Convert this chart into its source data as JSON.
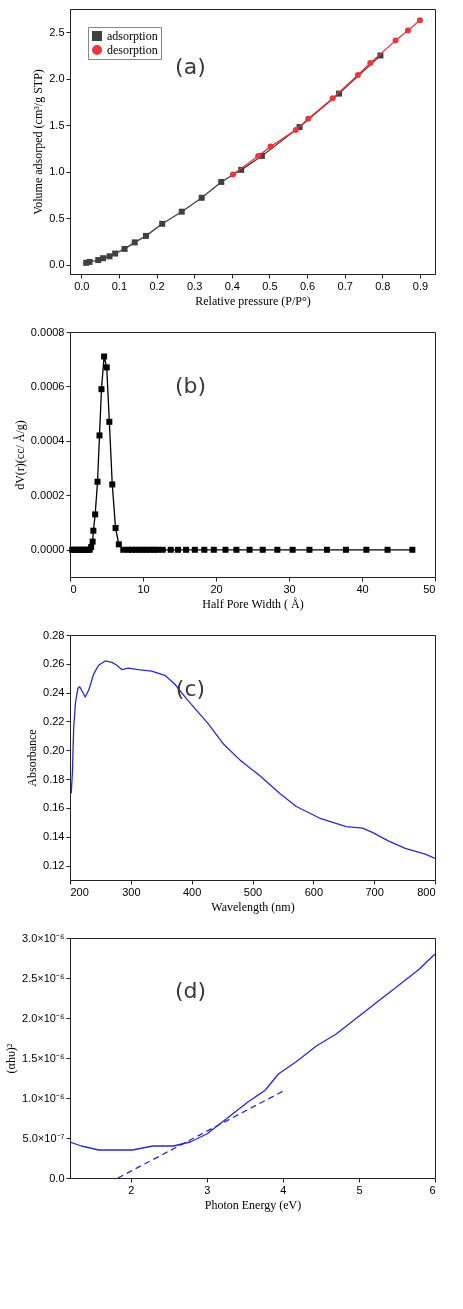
{
  "chart_data": [
    {
      "type": "line",
      "xlabel": "Relative pressure (P/P°)",
      "ylabel": "Volume adsorped (cm³/g STP)",
      "annotations": [
        "(a)"
      ],
      "xlim": [
        -0.03,
        0.94
      ],
      "ylim": [
        -0.1,
        2.75
      ],
      "xticks": [
        {
          "value": 0,
          "label": "0.0"
        },
        0.1,
        0.2,
        0.3,
        0.4,
        0.5,
        0.6,
        0.7,
        0.8,
        0.9
      ],
      "yticks": [
        {
          "value": 0,
          "label": "0.0"
        },
        0.5,
        {
          "value": 1,
          "label": "1.0"
        },
        1.5,
        {
          "value": 2,
          "label": "2.0"
        },
        2.5
      ],
      "grid": false,
      "legend": "top left",
      "series": [
        {
          "name": "adsorption",
          "color": "#404040",
          "marker": "square",
          "x": [
            0.013,
            0.022,
            0.045,
            0.058,
            0.075,
            0.09,
            0.115,
            0.142,
            0.172,
            0.215,
            0.267,
            0.32,
            0.372,
            0.425,
            0.48,
            0.58,
            0.685,
            0.795
          ],
          "values": [
            0.02,
            0.03,
            0.05,
            0.07,
            0.09,
            0.12,
            0.17,
            0.24,
            0.31,
            0.44,
            0.57,
            0.72,
            0.89,
            1.02,
            1.17,
            1.48,
            1.84,
            2.25
          ]
        },
        {
          "name": "desorption",
          "color": "#e8383d",
          "marker": "circle",
          "x": [
            0.403,
            0.47,
            0.503,
            0.57,
            0.603,
            0.668,
            0.735,
            0.768,
            0.835,
            0.868,
            0.9
          ],
          "values": [
            0.97,
            1.17,
            1.27,
            1.45,
            1.57,
            1.79,
            2.04,
            2.17,
            2.41,
            2.52,
            2.63
          ]
        }
      ]
    },
    {
      "type": "line",
      "xlabel": "Half Pore Width ( Å)",
      "ylabel": "dV(r)(cc/ Å/g)",
      "annotations": [
        "(b)"
      ],
      "xlim": [
        0,
        50
      ],
      "ylim": [
        -0.0001,
        0.0008
      ],
      "xticks": [
        0,
        10,
        20,
        30,
        40,
        50
      ],
      "yticks": [
        {
          "value": 0,
          "label": "0.0000"
        },
        0.0002,
        0.0004,
        0.0006,
        0.0008
      ],
      "grid": false,
      "marker": "square",
      "series": [
        {
          "color": "#000000",
          "x": [
            0.3,
            0.6,
            0.9,
            1.2,
            1.5,
            1.8,
            2.1,
            2.4,
            2.7,
            2.9,
            3.1,
            3.2,
            3.45,
            3.77,
            4.04,
            4.31,
            4.67,
            5.03,
            5.39,
            5.79,
            6.24,
            6.69,
            7.3,
            8,
            8.5,
            9,
            9.5,
            10,
            10.5,
            11,
            11.5,
            12,
            12.7,
            13.8,
            14.8,
            15.9,
            17.1,
            18.4,
            19.7,
            21.3,
            22.8,
            24.6,
            26.4,
            28.4,
            30.5,
            32.8,
            35.2,
            37.8,
            40.6,
            43.5,
            46.9
          ],
          "values": [
            0,
            0,
            0,
            0,
            0,
            0,
            0,
            0,
            0,
            1e-05,
            3e-05,
            7e-05,
            0.00013,
            0.00025,
            0.00042,
            0.00059,
            0.00071,
            0.00067,
            0.00047,
            0.00024,
            8e-05,
            2e-05,
            0,
            0,
            0,
            0,
            0,
            0,
            0,
            0,
            0,
            0,
            0,
            0,
            0,
            0,
            0,
            0,
            0,
            0,
            0,
            0,
            0,
            0,
            0,
            0,
            0,
            0,
            0,
            0,
            0
          ]
        }
      ]
    },
    {
      "type": "line",
      "xlabel": "Wavelength (nm)",
      "ylabel": "Absorbance",
      "annotations": [
        "(c)"
      ],
      "xlim": [
        200,
        800
      ],
      "ylim": [
        0.11,
        0.28
      ],
      "xticks": [
        200,
        300,
        400,
        500,
        600,
        700,
        800
      ],
      "yticks": [
        0.12,
        0.14,
        0.16,
        0.18,
        {
          "value": 0.2,
          "label": "0.20"
        },
        0.22,
        0.24,
        0.26,
        0.28
      ],
      "grid": false,
      "series": [
        {
          "color": "#2a2ac8",
          "x": [
            202,
            204,
            206,
            209,
            213,
            216,
            220,
            225,
            231,
            239,
            247,
            258,
            269,
            277,
            285,
            296,
            312,
            334,
            356,
            372,
            393,
            426,
            453,
            480,
            513,
            545,
            572,
            610,
            654,
            681,
            697,
            724,
            751,
            784,
            800
          ],
          "values": [
            0.17,
            0.185,
            0.215,
            0.233,
            0.243,
            0.244,
            0.241,
            0.237,
            0.242,
            0.253,
            0.259,
            0.262,
            0.261,
            0.259,
            0.256,
            0.257,
            0.256,
            0.255,
            0.252,
            0.246,
            0.235,
            0.219,
            0.204,
            0.193,
            0.182,
            0.17,
            0.161,
            0.153,
            0.147,
            0.146,
            0.143,
            0.137,
            0.132,
            0.128,
            0.125
          ]
        }
      ]
    },
    {
      "type": "line",
      "xlabel": "Photon Energy (eV)",
      "ylabel": "(αhυ)²",
      "annotations": [
        "(d)"
      ],
      "xlim": [
        1.2,
        6
      ],
      "ylim": [
        0,
        3e-06
      ],
      "xticks": [
        2,
        3,
        4,
        5,
        6
      ],
      "yticks": [
        {
          "value": 0,
          "label": "0.0"
        },
        {
          "value": 5e-07,
          "label": "5.0×10⁻⁷"
        },
        {
          "value": 1e-06,
          "label": "1.0×10⁻⁶"
        },
        {
          "value": 1.5e-06,
          "label": "1.5×10⁻⁶"
        },
        {
          "value": 2e-06,
          "label": "2.0×10⁻⁶"
        },
        {
          "value": 2.5e-06,
          "label": "2.5×10⁻⁶"
        },
        {
          "value": 3e-06,
          "label": "3.0×10⁻⁶"
        }
      ],
      "grid": false,
      "series": [
        {
          "color": "#2a2ac8",
          "x": [
            1.2,
            1.35,
            1.58,
            1.8,
            2.02,
            2.29,
            2.56,
            2.78,
            3.0,
            3.27,
            3.54,
            3.77,
            3.94,
            4.17,
            4.44,
            4.7,
            4.97,
            5.24,
            5.51,
            5.78,
            6.0
          ],
          "values": [
            4.5e-07,
            4e-07,
            3.5e-07,
            3.5e-07,
            3.5e-07,
            4e-07,
            4e-07,
            4.5e-07,
            5.5e-07,
            7.5e-07,
            9.5e-07,
            1.1e-06,
            1.3e-06,
            1.45e-06,
            1.65e-06,
            1.8e-06,
            2e-06,
            2.2e-06,
            2.4e-06,
            2.6e-06,
            2.8e-06
          ]
        },
        {
          "color": "#2a2ac8",
          "line_style": "dashed",
          "x": [
            1.83,
            4.03
          ],
          "values": [
            0,
            1.1e-06
          ]
        }
      ]
    }
  ]
}
